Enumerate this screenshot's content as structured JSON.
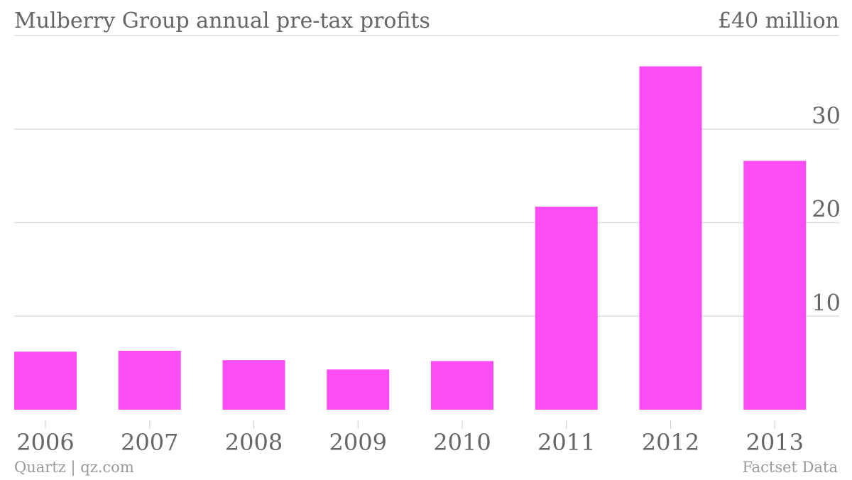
{
  "chart_data": {
    "type": "bar",
    "title": "Mulberry Group annual pre-tax profits",
    "axis_top_label": "£40 million",
    "categories": [
      "2006",
      "2007",
      "2008",
      "2009",
      "2010",
      "2011",
      "2012",
      "2013"
    ],
    "values": [
      6.2,
      6.3,
      5.3,
      4.3,
      5.2,
      21.7,
      36.7,
      26.6
    ],
    "y_ticks": [
      10,
      20,
      30
    ],
    "ylim": [
      0,
      40
    ],
    "ylabel": "",
    "xlabel": "",
    "grid": true,
    "y_axis_side": "right",
    "bar_color": "#ff4df5",
    "grid_color": "#dddddd"
  },
  "footer": {
    "source_left": "Quartz | qz.com",
    "source_right": "Factset Data"
  }
}
